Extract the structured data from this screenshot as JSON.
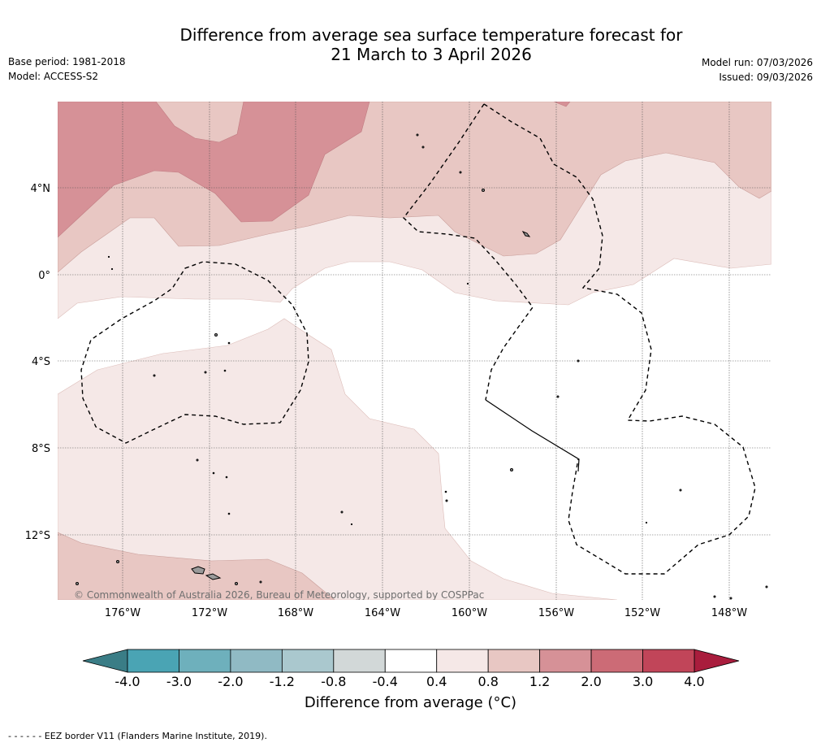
{
  "title": {
    "line1": "Difference from average sea surface temperature forecast for",
    "line2": "21 March to 3 April 2026"
  },
  "meta_left": {
    "base_period": "Base period: 1981-2018",
    "model": "Model: ACCESS-S2"
  },
  "meta_right": {
    "model_run": "Model run: 07/03/2026",
    "issued": "Issued: 09/03/2026"
  },
  "map": {
    "lon_labels": [
      "176°W",
      "172°W",
      "168°W",
      "164°W",
      "160°W",
      "156°W",
      "152°W",
      "148°W"
    ],
    "lat_labels": [
      "4°N",
      "0°",
      "4°S",
      "8°S",
      "12°S"
    ],
    "copyright": "© Commonwealth of Australia 2026, Bureau of Meteorology, supported by COSPPac"
  },
  "colorbar": {
    "ticks": [
      "-4.0",
      "-3.0",
      "-2.0",
      "-1.2",
      "-0.8",
      "-0.4",
      "0.4",
      "0.8",
      "1.2",
      "2.0",
      "3.0",
      "4.0"
    ],
    "colors": [
      "#4aa4b4",
      "#6eb0bc",
      "#90bac4",
      "#aac8ce",
      "#d2d8d8",
      "#ffffff",
      "#f5e8e7",
      "#e8c7c3",
      "#d69197",
      "#cc6b76",
      "#c14559"
    ],
    "extend_low_color": "#3a7d86",
    "extend_high_color": "#a91d3d",
    "title": "Difference from average (°C)"
  },
  "footer": "- -  - -  - - EEZ border V11 (Flanders Marine Institute, 2019)."
}
